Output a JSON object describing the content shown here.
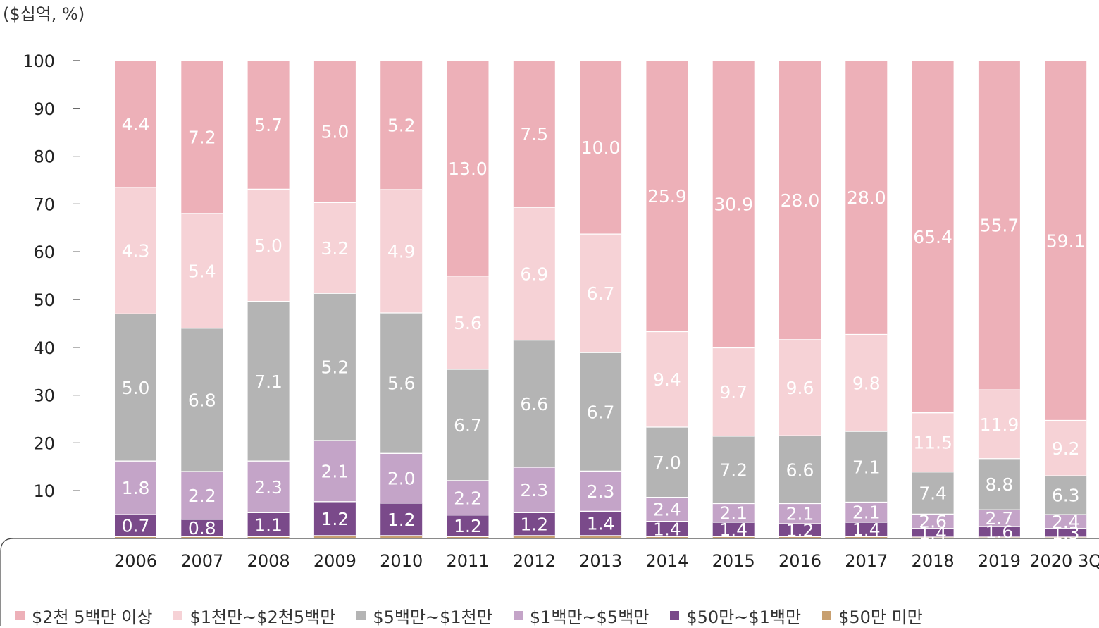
{
  "unit_label": "($십억, %)",
  "chart_data": {
    "type": "bar",
    "stacked": true,
    "normalized_percent": true,
    "title": "",
    "xlabel": "",
    "ylabel": "",
    "ylim": [
      0,
      100
    ],
    "yticks": [
      10,
      20,
      30,
      40,
      50,
      60,
      70,
      80,
      90,
      100
    ],
    "legend_position": "bottom",
    "categories": [
      "2006",
      "2007",
      "2008",
      "2009",
      "2010",
      "2011",
      "2012",
      "2013",
      "2014",
      "2015",
      "2016",
      "2017",
      "2018",
      "2019",
      "2020 3Q"
    ],
    "series": [
      {
        "name": "$50만 미만",
        "color": "#c8a070",
        "percent": [
          0.4,
          0.4,
          0.4,
          0.6,
          0.6,
          0.4,
          0.6,
          0.6,
          0.4,
          0.4,
          0.4,
          0.4,
          0.3,
          0.3,
          0.3
        ],
        "labels": [
          null,
          null,
          null,
          null,
          null,
          null,
          null,
          null,
          null,
          null,
          null,
          null,
          null,
          null,
          null
        ]
      },
      {
        "name": "$50만~$1백만",
        "color": "#7a4a8a",
        "percent": [
          4.6,
          3.6,
          5.0,
          7.1,
          6.8,
          4.5,
          4.8,
          5.1,
          3.2,
          3.0,
          2.7,
          3.0,
          1.8,
          2.2,
          1.8
        ],
        "labels": [
          "0.7",
          "0.8",
          "1.1",
          "1.2",
          "1.2",
          "1.2",
          "1.2",
          "1.4",
          "1.4",
          "1.4",
          "1.2",
          "1.4",
          "1.4",
          "1.6",
          "1.3"
        ]
      },
      {
        "name": "$1백만~$5백만",
        "color": "#c4a4c8",
        "percent": [
          11.2,
          10.0,
          10.8,
          12.8,
          10.4,
          7.2,
          9.5,
          8.4,
          5.0,
          3.9,
          4.2,
          4.2,
          3.0,
          3.5,
          2.9
        ],
        "labels": [
          "1.8",
          "2.2",
          "2.3",
          "2.1",
          "2.0",
          "2.2",
          "2.3",
          "2.3",
          "2.4",
          "2.1",
          "2.1",
          "2.1",
          "2.6",
          "2.7",
          "2.4"
        ]
      },
      {
        "name": "$5백만~$1천만",
        "color": "#b4b4b4",
        "percent": [
          30.8,
          30.0,
          33.4,
          30.8,
          29.4,
          23.3,
          26.6,
          24.8,
          14.7,
          14.1,
          14.2,
          14.8,
          8.8,
          10.7,
          8.1
        ],
        "labels": [
          "5.0",
          "6.8",
          "7.1",
          "5.2",
          "5.6",
          "6.7",
          "6.6",
          "6.7",
          "7.0",
          "7.2",
          "6.6",
          "7.1",
          "7.4",
          "8.8",
          "6.3"
        ]
      },
      {
        "name": "$1천만~$2천5백만",
        "color": "#f6d2d6",
        "percent": [
          26.5,
          24.0,
          23.5,
          19.0,
          25.8,
          19.5,
          27.8,
          24.8,
          20.0,
          18.5,
          20.1,
          20.3,
          12.4,
          14.4,
          11.6
        ],
        "labels": [
          "4.3",
          "5.4",
          "5.0",
          "3.2",
          "4.9",
          "5.6",
          "6.9",
          "6.7",
          "9.4",
          "9.7",
          "9.6",
          "9.8",
          "11.5",
          "11.9",
          "9.2"
        ]
      },
      {
        "name": "$2천 5백만 이상",
        "color": "#edb0b8",
        "percent": [
          26.5,
          32.0,
          26.9,
          29.7,
          27.0,
          45.1,
          30.7,
          36.3,
          56.7,
          60.1,
          58.4,
          57.3,
          73.7,
          68.9,
          75.3
        ],
        "labels": [
          "4.4",
          "7.2",
          "5.7",
          "5.0",
          "5.2",
          "13.0",
          "7.5",
          "10.0",
          "25.9",
          "30.9",
          "28.0",
          "28.0",
          "65.4",
          "55.7",
          "59.1"
        ]
      }
    ]
  },
  "legend": {
    "items": [
      {
        "name": "$2천 5백만 이상",
        "color": "#edb0b8"
      },
      {
        "name": "$1천만~$2천5백만",
        "color": "#f6d2d6"
      },
      {
        "name": "$5백만~$1천만",
        "color": "#b4b4b4"
      },
      {
        "name": "$1백만~$5백만",
        "color": "#c4a4c8"
      },
      {
        "name": "$50만~$1백만",
        "color": "#7a4a8a"
      },
      {
        "name": "$50만 미만",
        "color": "#c8a070"
      }
    ]
  }
}
